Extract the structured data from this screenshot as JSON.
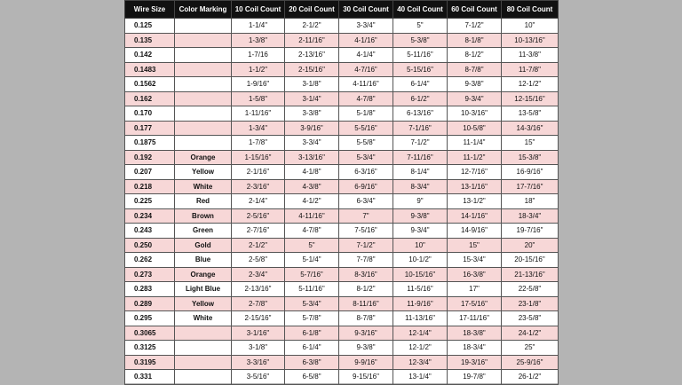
{
  "table": {
    "header": [
      "Wire Size",
      "Color Marking",
      "10 Coil Count",
      "20 Coil Count",
      "30 Coil Count",
      "40 Coil Count",
      "60 Coil Count",
      "80 Coil Count"
    ],
    "rows": [
      [
        "0.125",
        null,
        "1-1/4\"",
        "2-1/2\"",
        "3-3/4\"",
        "5\"",
        "7-1/2\"",
        "10\""
      ],
      [
        "0.135",
        null,
        "1-3/8\"",
        "2-11/16\"",
        "4-1/16\"",
        "5-3/8\"",
        "8-1/8\"",
        "10-13/16\""
      ],
      [
        "0.142",
        null,
        "1-7/16",
        "2-13/16\"",
        "4-1/4\"",
        "5-11/16\"",
        "8-1/2\"",
        "11-3/8\""
      ],
      [
        "0.1483",
        null,
        "1-1/2\"",
        "2-15/16\"",
        "4-7/16\"",
        "5-15/16\"",
        "8-7/8\"",
        "11-7/8\""
      ],
      [
        "0.1562",
        null,
        "1-9/16\"",
        "3-1/8\"",
        "4-11/16\"",
        "6-1/4\"",
        "9-3/8\"",
        "12-1/2\""
      ],
      [
        "0.162",
        null,
        "1-5/8\"",
        "3-1/4\"",
        "4-7/8\"",
        "6-1/2\"",
        "9-3/4\"",
        "12-15/16\""
      ],
      [
        "0.170",
        null,
        "1-11/16\"",
        "3-3/8\"",
        "5-1/8\"",
        "6-13/16\"",
        "10-3/16\"",
        "13-5/8\""
      ],
      [
        "0.177",
        null,
        "1-3/4\"",
        "3-9/16\"",
        "5-5/16\"",
        "7-1/16\"",
        "10-5/8\"",
        "14-3/16\""
      ],
      [
        "0.1875",
        null,
        "1-7/8\"",
        "3-3/4\"",
        "5-5/8\"",
        "7-1/2\"",
        "11-1/4\"",
        "15\""
      ],
      [
        "0.192",
        "Orange",
        "1-15/16\"",
        "3-13/16\"",
        "5-3/4\"",
        "7-11/16\"",
        "11-1/2\"",
        "15-3/8\""
      ],
      [
        "0.207",
        "Yellow",
        "2-1/16\"",
        "4-1/8\"",
        "6-3/16\"",
        "8-1/4\"",
        "12-7/16\"",
        "16-9/16\""
      ],
      [
        "0.218",
        "White",
        "2-3/16\"",
        "4-3/8\"",
        "6-9/16\"",
        "8-3/4\"",
        "13-1/16\"",
        "17-7/16\""
      ],
      [
        "0.225",
        "Red",
        "2-1/4\"",
        "4-1/2\"",
        "6-3/4\"",
        "9\"",
        "13-1/2\"",
        "18\""
      ],
      [
        "0.234",
        "Brown",
        "2-5/16\"",
        "4-11/16\"",
        "7\"",
        "9-3/8\"",
        "14-1/16\"",
        "18-3/4\""
      ],
      [
        "0.243",
        "Green",
        "2-7/16\"",
        "4-7/8\"",
        "7-5/16\"",
        "9-3/4\"",
        "14-9/16\"",
        "19-7/16\""
      ],
      [
        "0.250",
        "Gold",
        "2-1/2\"",
        "5\"",
        "7-1/2\"",
        "10\"",
        "15\"",
        "20\""
      ],
      [
        "0.262",
        "Blue",
        "2-5/8\"",
        "5-1/4\"",
        "7-7/8\"",
        "10-1/2\"",
        "15-3/4\"",
        "20-15/16\""
      ],
      [
        "0.273",
        "Orange",
        "2-3/4\"",
        "5-7/16\"",
        "8-3/16\"",
        "10-15/16\"",
        "16-3/8\"",
        "21-13/16\""
      ],
      [
        "0.283",
        "Light Blue",
        "2-13/16\"",
        "5-11/16\"",
        "8-1/2\"",
        "11-5/16\"",
        "17\"",
        "22-5/8\""
      ],
      [
        "0.289",
        "Yellow",
        "2-7/8\"",
        "5-3/4\"",
        "8-11/16\"",
        "11-9/16\"",
        "17-5/16\"",
        "23-1/8\""
      ],
      [
        "0.295",
        "White",
        "2-15/16\"",
        "5-7/8\"",
        "8-7/8\"",
        "11-13/16\"",
        "17-11/16\"",
        "23-5/8\""
      ],
      [
        "0.3065",
        null,
        "3-1/16\"",
        "6-1/8\"",
        "9-3/16\"",
        "12-1/4\"",
        "18-3/8\"",
        "24-1/2\""
      ],
      [
        "0.3125",
        null,
        "3-1/8\"",
        "6-1/4\"",
        "9-3/8\"",
        "12-1/2\"",
        "18-3/4\"",
        "25\""
      ],
      [
        "0.3195",
        null,
        "3-3/16\"",
        "6-3/8\"",
        "9-9/16\"",
        "12-3/4\"",
        "19-3/16\"",
        "25-9/16\""
      ],
      [
        "0.331",
        null,
        "3-5/16\"",
        "6-5/8\"",
        "9-15/16\"",
        "13-1/4\"",
        "19-7/8\"",
        "26-1/2\""
      ]
    ]
  }
}
